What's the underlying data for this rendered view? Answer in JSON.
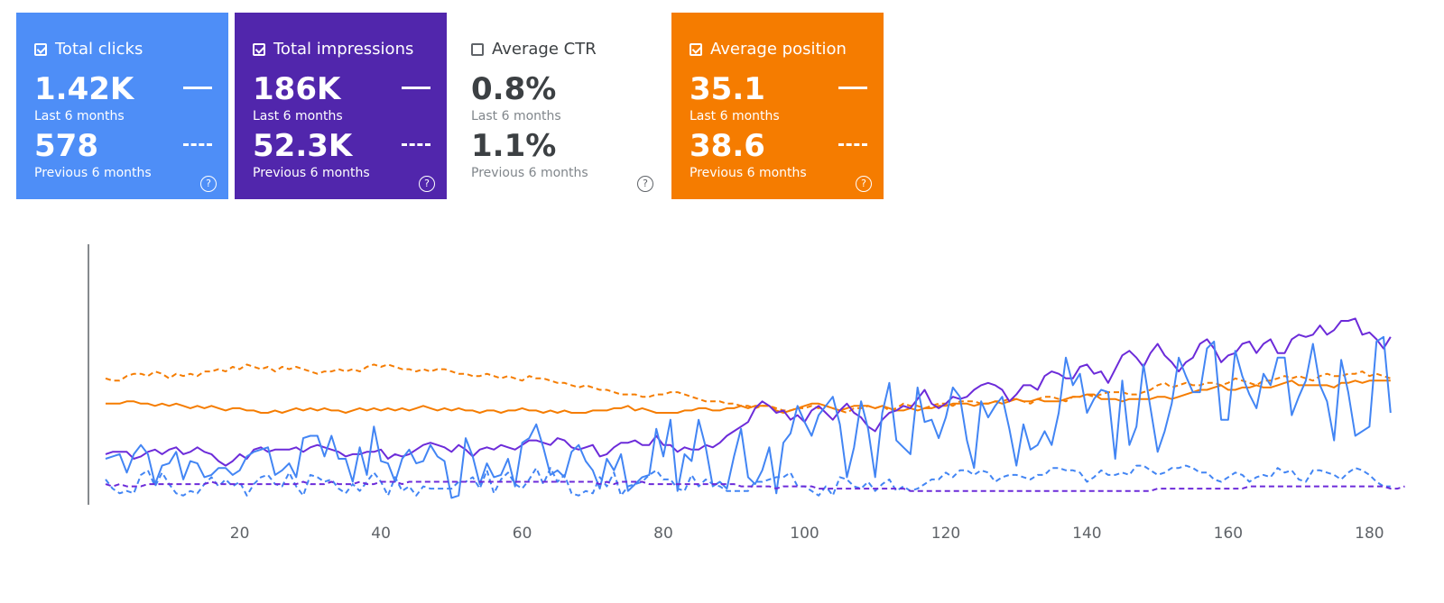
{
  "colors": {
    "clicks": "#4e8ef7",
    "impressions": "#5126ac",
    "ctr": "#ffffff",
    "position": "#f57c00",
    "clicks_line": "#4285f4",
    "impressions_line": "#6c2bd9",
    "position_line": "#f57c00"
  },
  "cards": [
    {
      "title": "Total clicks",
      "checked": true,
      "current": "1.42K",
      "current_label": "Last 6 months",
      "previous": "578",
      "previous_label": "Previous 6 months",
      "help_icon": "help-circle-icon",
      "help_text": "?"
    },
    {
      "title": "Total impressions",
      "checked": true,
      "current": "186K",
      "current_label": "Last 6 months",
      "previous": "52.3K",
      "previous_label": "Previous 6 months",
      "help_icon": "help-circle-icon",
      "help_text": "?"
    },
    {
      "title": "Average CTR",
      "checked": false,
      "current": "0.8%",
      "current_label": "Last 6 months",
      "previous": "1.1%",
      "previous_label": "Previous 6 months",
      "help_icon": "help-circle-icon",
      "help_text": "?"
    },
    {
      "title": "Average position",
      "checked": true,
      "current": "35.1",
      "current_label": "Last 6 months",
      "previous": "38.6",
      "previous_label": "Previous 6 months",
      "help_icon": "help-circle-icon",
      "help_text": "?"
    }
  ],
  "chart_data": {
    "type": "line",
    "xlabel": "",
    "ylabel": "",
    "xlim": [
      0,
      183
    ],
    "ylim": [
      0,
      100
    ],
    "grid": false,
    "legend": "metric cards above chart",
    "x_ticks": [
      20,
      40,
      60,
      80,
      100,
      120,
      140,
      160,
      180
    ],
    "series": [
      {
        "key": "position_prev",
        "metric": "Average position",
        "period": "Previous 6 months",
        "style": "dashed",
        "values": [
          55,
          54,
          54,
          56,
          57,
          57,
          56,
          58,
          57,
          55,
          57,
          56,
          57,
          56,
          58,
          58,
          59,
          58,
          60,
          59,
          61,
          60,
          59,
          60,
          58,
          60,
          59,
          60,
          59,
          58,
          57,
          58,
          58,
          59,
          58,
          59,
          58,
          60,
          61,
          60,
          61,
          60,
          59,
          59,
          58,
          59,
          58,
          59,
          59,
          58,
          57,
          57,
          56,
          56,
          57,
          56,
          55,
          56,
          55,
          54,
          56,
          55,
          55,
          54,
          53,
          53,
          52,
          51,
          52,
          51,
          50,
          50,
          49,
          48,
          48,
          48,
          47,
          47,
          48,
          48,
          49,
          49,
          48,
          47,
          46,
          45,
          45,
          45,
          44,
          44,
          43,
          43,
          42,
          43,
          43,
          42,
          41,
          41,
          42,
          42,
          43,
          42,
          43,
          42,
          41,
          40,
          42,
          42,
          43,
          42,
          43,
          41,
          42,
          44,
          43,
          43,
          42,
          43,
          44,
          44,
          43,
          45,
          45,
          45,
          44,
          44,
          45,
          45,
          46,
          46,
          45,
          44,
          46,
          47,
          47,
          46,
          45,
          47,
          47,
          48,
          47,
          48,
          49,
          49,
          49,
          48,
          48,
          49,
          50,
          52,
          53,
          51,
          52,
          53,
          52,
          52,
          53,
          53,
          52,
          53,
          55,
          54,
          53,
          52,
          54,
          54,
          55,
          56,
          55,
          56,
          55,
          54,
          56,
          57,
          56,
          56,
          57,
          57,
          58,
          56,
          57,
          56,
          55
        ]
      },
      {
        "key": "position_cur",
        "metric": "Average position",
        "period": "Last 6 months",
        "style": "solid",
        "values": [
          44,
          44,
          44,
          45,
          45,
          44,
          44,
          43,
          44,
          43,
          44,
          43,
          42,
          43,
          42,
          43,
          42,
          41,
          42,
          42,
          41,
          41,
          40,
          40,
          41,
          40,
          41,
          42,
          41,
          42,
          41,
          42,
          41,
          41,
          40,
          41,
          42,
          41,
          42,
          41,
          42,
          41,
          42,
          41,
          42,
          43,
          42,
          41,
          42,
          41,
          42,
          41,
          41,
          40,
          41,
          41,
          40,
          41,
          41,
          42,
          41,
          41,
          40,
          41,
          40,
          41,
          40,
          40,
          40,
          41,
          41,
          41,
          42,
          42,
          43,
          41,
          42,
          41,
          40,
          40,
          40,
          40,
          41,
          41,
          42,
          42,
          41,
          41,
          42,
          42,
          43,
          42,
          43,
          43,
          43,
          41,
          40,
          41,
          42,
          43,
          44,
          44,
          43,
          42,
          41,
          42,
          43,
          43,
          43,
          42,
          43,
          42,
          41,
          41,
          42,
          41,
          42,
          42,
          43,
          43,
          44,
          44,
          44,
          43,
          44,
          44,
          45,
          44,
          45,
          46,
          45,
          45,
          46,
          45,
          45,
          45,
          46,
          47,
          47,
          48,
          48,
          46,
          46,
          46,
          45,
          46,
          46,
          46,
          46,
          47,
          47,
          46,
          47,
          48,
          49,
          50,
          50,
          51,
          52,
          50,
          50,
          51,
          51,
          52,
          51,
          51,
          52,
          53,
          54,
          52,
          52,
          52,
          52,
          52,
          51,
          53,
          53,
          54,
          53,
          54,
          54,
          54,
          54
        ]
      },
      {
        "key": "impressions_cur",
        "metric": "Total impressions",
        "period": "Last 6 months",
        "style": "solid",
        "values": [
          22,
          23,
          23,
          23,
          20,
          21,
          23,
          24,
          22,
          24,
          25,
          22,
          23,
          25,
          23,
          22,
          19,
          17,
          19,
          22,
          20,
          24,
          25,
          23,
          24,
          24,
          24,
          25,
          23,
          25,
          26,
          25,
          24,
          23,
          21,
          22,
          22,
          23,
          23,
          24,
          20,
          22,
          21,
          22,
          24,
          26,
          27,
          26,
          25,
          23,
          26,
          24,
          21,
          24,
          25,
          24,
          26,
          25,
          24,
          26,
          28,
          28,
          27,
          26,
          29,
          28,
          25,
          24,
          25,
          26,
          21,
          22,
          25,
          27,
          27,
          28,
          26,
          26,
          30,
          26,
          26,
          23,
          25,
          24,
          24,
          26,
          25,
          27,
          30,
          32,
          34,
          36,
          42,
          45,
          43,
          40,
          41,
          37,
          39,
          36,
          41,
          43,
          40,
          37,
          41,
          44,
          40,
          38,
          34,
          32,
          37,
          40,
          41,
          43,
          42,
          46,
          50,
          44,
          42,
          44,
          47,
          46,
          47,
          50,
          52,
          53,
          52,
          50,
          45,
          48,
          52,
          52,
          50,
          56,
          58,
          57,
          55,
          55,
          60,
          61,
          57,
          58,
          53,
          59,
          65,
          67,
          64,
          60,
          66,
          70,
          65,
          62,
          58,
          62,
          64,
          70,
          72,
          68,
          62,
          65,
          66,
          70,
          71,
          66,
          70,
          72,
          66,
          66,
          72,
          74,
          73,
          74,
          78,
          74,
          76,
          80,
          80,
          81,
          74,
          75,
          72,
          68,
          73
        ]
      },
      {
        "key": "clicks_cur",
        "metric": "Total clicks",
        "period": "Last 6 months",
        "style": "solid",
        "values": [
          20,
          21,
          22,
          14,
          22,
          26,
          22,
          9,
          17,
          18,
          23,
          11,
          19,
          18,
          12,
          13,
          16,
          16,
          13,
          15,
          21,
          23,
          24,
          25,
          13,
          15,
          18,
          12,
          29,
          30,
          30,
          21,
          30,
          20,
          20,
          10,
          25,
          13,
          34,
          19,
          18,
          10,
          20,
          24,
          18,
          19,
          26,
          21,
          19,
          3,
          4,
          29,
          21,
          9,
          18,
          12,
          13,
          20,
          8,
          27,
          29,
          35,
          25,
          13,
          15,
          12,
          23,
          26,
          19,
          15,
          7,
          20,
          15,
          22,
          6,
          9,
          12,
          13,
          33,
          21,
          37,
          6,
          22,
          19,
          37,
          25,
          8,
          10,
          7,
          21,
          33,
          12,
          9,
          15,
          25,
          5,
          27,
          31,
          43,
          36,
          30,
          39,
          43,
          47,
          35,
          12,
          25,
          45,
          33,
          12,
          40,
          53,
          28,
          25,
          22,
          51,
          36,
          37,
          29,
          38,
          51,
          47,
          28,
          16,
          45,
          38,
          43,
          47,
          33,
          17,
          35,
          24,
          26,
          32,
          26,
          40,
          64,
          52,
          57,
          40,
          46,
          50,
          49,
          20,
          54,
          26,
          34,
          61,
          42,
          23,
          32,
          44,
          64,
          56,
          49,
          49,
          68,
          71,
          37,
          37,
          67,
          56,
          48,
          42,
          57,
          52,
          64,
          64,
          39,
          47,
          54,
          70,
          52,
          45,
          28,
          63,
          49,
          30,
          32,
          34,
          71,
          73,
          40
        ]
      },
      {
        "key": "clicks_prev",
        "metric": "Total clicks",
        "period": "Previous 6 months",
        "style": "dashed",
        "values": [
          11,
          7,
          5,
          6,
          5,
          13,
          15,
          8,
          14,
          9,
          5,
          4,
          6,
          5,
          9,
          12,
          8,
          11,
          8,
          10,
          4,
          9,
          12,
          13,
          9,
          8,
          14,
          8,
          4,
          13,
          12,
          10,
          11,
          7,
          5,
          9,
          6,
          10,
          14,
          10,
          4,
          12,
          6,
          8,
          4,
          8,
          7,
          7,
          7,
          7,
          10,
          10,
          12,
          7,
          15,
          5,
          11,
          14,
          9,
          7,
          11,
          16,
          9,
          16,
          10,
          13,
          5,
          4,
          6,
          5,
          12,
          8,
          14,
          4,
          8,
          9,
          10,
          13,
          15,
          11,
          11,
          7,
          6,
          13,
          8,
          11,
          9,
          8,
          6,
          6,
          6,
          6,
          10,
          10,
          11,
          12,
          12,
          14,
          8,
          8,
          6,
          4,
          8,
          4,
          12,
          11,
          8,
          7,
          10,
          6,
          9,
          11,
          6,
          8,
          6,
          7,
          9,
          11,
          11,
          14,
          12,
          15,
          15,
          13,
          15,
          14,
          10,
          12,
          13,
          13,
          12,
          11,
          13,
          13,
          16,
          16,
          15,
          15,
          14,
          10,
          12,
          15,
          13,
          13,
          14,
          13,
          17,
          17,
          15,
          13,
          14,
          16,
          16,
          17,
          16,
          14,
          14,
          11,
          10,
          12,
          14,
          13,
          10,
          12,
          13,
          12,
          16,
          14,
          15,
          11,
          10,
          15,
          15,
          14,
          13,
          11,
          14,
          16,
          15,
          13,
          10,
          8,
          8
        ]
      },
      {
        "key": "impressions_prev",
        "metric": "Total impressions",
        "period": "Previous 6 months",
        "style": "dashed",
        "values": [
          9,
          8,
          9,
          8,
          8,
          8,
          9,
          9,
          9,
          9,
          9,
          9,
          9,
          9,
          9,
          10,
          9,
          9,
          9,
          9,
          9,
          9,
          9,
          9,
          9,
          9,
          9,
          9,
          10,
          9,
          9,
          9,
          10,
          9,
          9,
          9,
          10,
          9,
          9,
          10,
          10,
          10,
          9,
          10,
          10,
          10,
          10,
          10,
          10,
          10,
          10,
          10,
          10,
          10,
          10,
          10,
          10,
          10,
          10,
          10,
          10,
          10,
          10,
          10,
          10,
          10,
          10,
          10,
          10,
          10,
          9,
          10,
          9,
          10,
          10,
          10,
          10,
          9,
          9,
          9,
          9,
          9,
          9,
          9,
          9,
          9,
          9,
          9,
          9,
          9,
          8,
          8,
          8,
          8,
          8,
          7,
          8,
          8,
          8,
          8,
          8,
          7,
          7,
          7,
          7,
          7,
          7,
          7,
          7,
          7,
          7,
          7,
          7,
          7,
          6,
          6,
          6,
          6,
          6,
          6,
          6,
          6,
          6,
          6,
          6,
          6,
          6,
          6,
          6,
          6,
          6,
          6,
          6,
          6,
          6,
          6,
          6,
          6,
          6,
          6,
          6,
          6,
          6,
          6,
          6,
          6,
          6,
          6,
          6,
          7,
          7,
          7,
          7,
          7,
          7,
          7,
          7,
          7,
          7,
          7,
          7,
          7,
          8,
          8,
          8,
          8,
          8,
          8,
          8,
          8,
          8,
          8,
          8,
          8,
          8,
          8,
          8,
          8,
          8,
          8,
          8,
          8,
          7,
          7,
          8
        ]
      }
    ]
  }
}
